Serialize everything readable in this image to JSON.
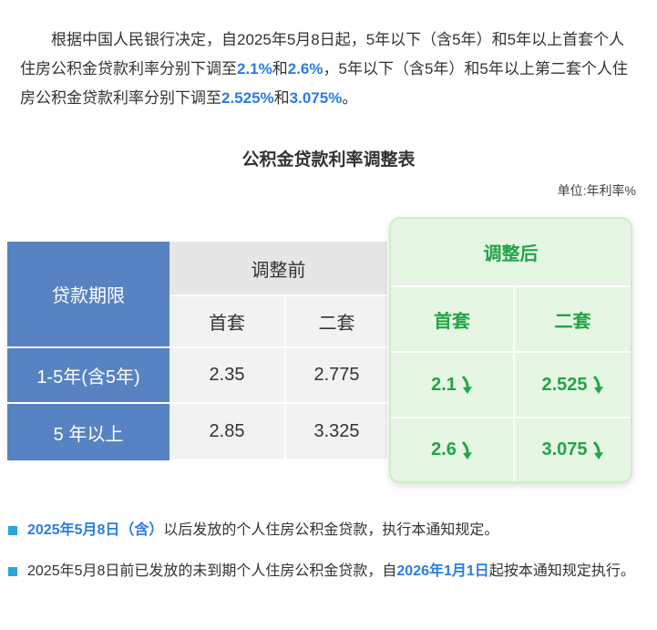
{
  "intro": [
    "根据中国人民银行决定，自2025年5月8日起，5年以下（含5年）和5年以上首套个人住房公积金贷款利率分别下调至",
    "2.1%",
    "和",
    "2.6%",
    "，5年以下（含5年）和5年以上第二套个人住房公积金贷款利率分别下调至",
    "2.525%",
    "和",
    "3.075%",
    "。"
  ],
  "table": {
    "title": "公积金贷款利率调整表",
    "unit": "单位:年利率%",
    "term_header": "贷款期限",
    "before": {
      "label": "调整前",
      "cols": [
        "首套",
        "二套"
      ]
    },
    "after": {
      "label": "调整后",
      "cols": [
        "首套",
        "二套"
      ]
    },
    "rows": [
      {
        "term": "1-5年(含5年)",
        "before": [
          "2.35",
          "2.775"
        ],
        "after": [
          "2.1",
          "2.525"
        ]
      },
      {
        "term": "5 年以上",
        "before": [
          "2.85",
          "3.325"
        ],
        "after": [
          "2.6",
          "3.075"
        ]
      }
    ]
  },
  "notes": [
    [
      "2025年5月8日（含）",
      "以后发放的个人住房公积金贷款，执行本通知规定。"
    ],
    [
      "2025年5月8日前已发放的未到期个人住房公积金贷款，自",
      "2026年1月1日",
      "起按本通知规定执行。"
    ]
  ]
}
